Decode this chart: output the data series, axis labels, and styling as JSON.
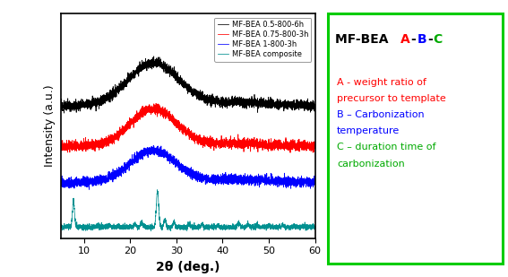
{
  "xlim": [
    5,
    60
  ],
  "xlabel": "2θ (deg.)",
  "ylabel": "Intensity (a.u.)",
  "legend_labels": [
    "MF-BEA 0.5-800-6h",
    "MF-BEA 0.75-800-3h",
    "MF-BEA 1-800-3h",
    "MF-BEA composite"
  ],
  "line_colors": [
    "black",
    "red",
    "blue",
    "#009090"
  ],
  "offsets": [
    2.8,
    1.85,
    1.0,
    0.0
  ],
  "noise_levels": [
    0.055,
    0.055,
    0.055,
    0.03
  ],
  "box_color": "#00cc00",
  "annotation_title_black": "MF-BEA  ",
  "annotation_A": "A",
  "annotation_dash1": "-",
  "annotation_B": "B",
  "annotation_dash2": "-",
  "annotation_C": "C",
  "annotation_lines": [
    [
      "A - weight ratio of",
      "red"
    ],
    [
      "precursor to template",
      "red"
    ],
    [
      "B – Carbonization",
      "blue"
    ],
    [
      "temperature",
      "blue"
    ],
    [
      "C – duration time of",
      "#00aa00"
    ],
    [
      "carbonization",
      "#00aa00"
    ]
  ]
}
